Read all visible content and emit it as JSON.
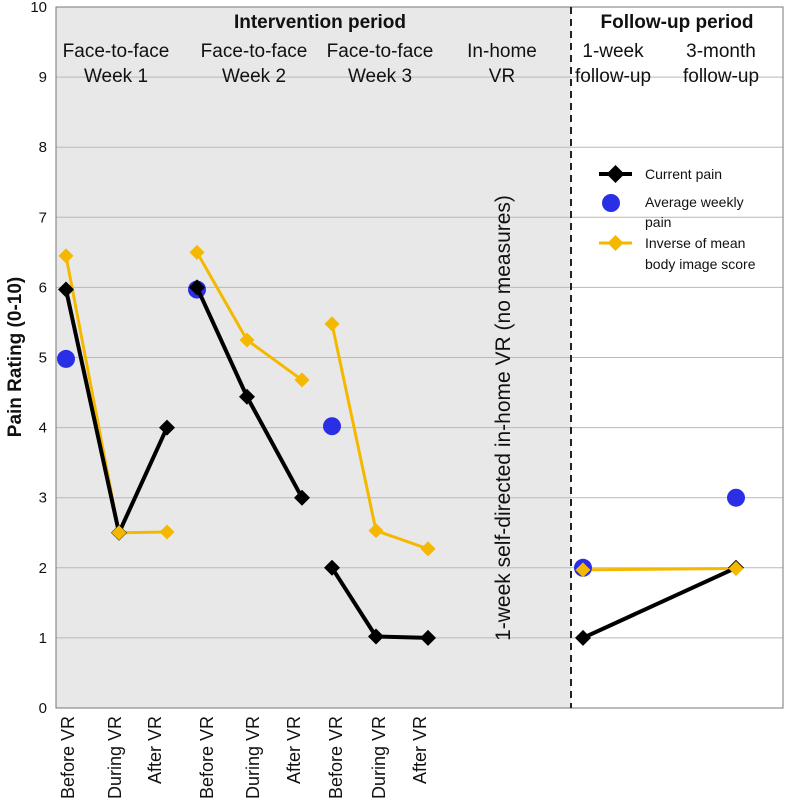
{
  "chart_data": {
    "type": "line",
    "ylabel": "Pain Rating (0-10)",
    "ylim": [
      0,
      10
    ],
    "yticks": [
      0,
      1,
      2,
      3,
      4,
      5,
      6,
      7,
      8,
      9,
      10
    ],
    "periods": {
      "intervention": "Intervention period",
      "followup": "Follow-up period"
    },
    "column_headers": [
      {
        "line1": "Face-to-face",
        "line2": "Week 1"
      },
      {
        "line1": "Face-to-face",
        "line2": "Week 2"
      },
      {
        "line1": "Face-to-face",
        "line2": "Week 3"
      },
      {
        "line1": "In-home",
        "line2": "VR"
      },
      {
        "line1": "1-week",
        "line2": "follow-up"
      },
      {
        "line1": "3-month",
        "line2": "follow-up"
      }
    ],
    "xtick_labels": [
      "Before VR",
      "During VR",
      "After VR",
      "Before VR",
      "During VR",
      "After VR",
      "Before VR",
      "During VR",
      "After VR"
    ],
    "no_measures_note": "1-week self-directed in-home VR (no measures)",
    "series": [
      {
        "name": "Current pain",
        "color": "#000000",
        "marker": "diamond",
        "segments": [
          [
            {
              "x": 1,
              "y": 5.97
            },
            {
              "x": 2,
              "y": 2.5
            },
            {
              "x": 3,
              "y": 4.0
            }
          ],
          [
            {
              "x": 4,
              "y": 6.0
            },
            {
              "x": 5,
              "y": 4.44
            },
            {
              "x": 6,
              "y": 3.0
            }
          ],
          [
            {
              "x": 7,
              "y": 2.0
            },
            {
              "x": 8,
              "y": 1.02
            },
            {
              "x": 9,
              "y": 1.0
            }
          ],
          [
            {
              "x": 11,
              "y": 1.0
            },
            {
              "x": 12,
              "y": 2.0
            }
          ]
        ]
      },
      {
        "name": "Average weekly pain",
        "color": "#2a2fe6",
        "marker": "circle",
        "points": [
          {
            "x": 1,
            "y": 4.98
          },
          {
            "x": 4,
            "y": 5.97
          },
          {
            "x": 7,
            "y": 4.02
          },
          {
            "x": 11,
            "y": 2.0
          },
          {
            "x": 12,
            "y": 3.0
          }
        ]
      },
      {
        "name": "Inverse of mean body image score",
        "legend_line1": "Inverse of mean",
        "legend_line2": "body image score",
        "color": "#f5b800",
        "marker": "diamond",
        "segments": [
          [
            {
              "x": 1,
              "y": 6.45
            },
            {
              "x": 2,
              "y": 2.5
            },
            {
              "x": 3,
              "y": 2.51
            }
          ],
          [
            {
              "x": 4,
              "y": 6.5
            },
            {
              "x": 5,
              "y": 5.25
            },
            {
              "x": 6,
              "y": 4.68
            }
          ],
          [
            {
              "x": 7,
              "y": 5.48
            },
            {
              "x": 8,
              "y": 2.53
            },
            {
              "x": 9,
              "y": 2.27
            }
          ],
          [
            {
              "x": 11,
              "y": 1.97
            },
            {
              "x": 12,
              "y": 1.99
            }
          ]
        ]
      }
    ],
    "legend": {
      "current_pain": "Current pain",
      "avg_line1": "Average weekly",
      "avg_line2": "pain",
      "inv_line1": "Inverse of mean",
      "inv_line2": "body image score"
    }
  }
}
